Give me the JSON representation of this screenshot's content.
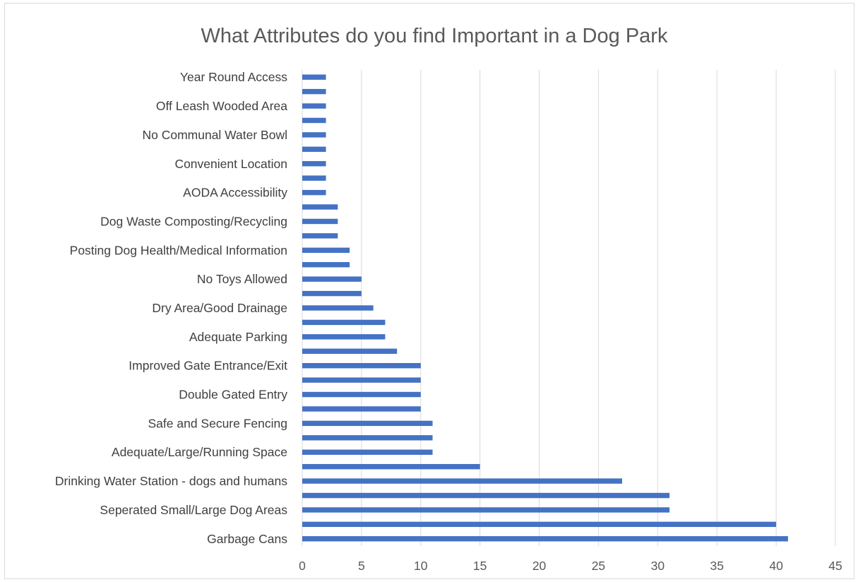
{
  "chart_data": {
    "type": "bar",
    "orientation": "horizontal",
    "title": "What Attributes do you find Important in a Dog Park",
    "xlabel": "",
    "ylabel": "",
    "xlim": [
      0,
      45
    ],
    "x_ticks": [
      0,
      5,
      10,
      15,
      20,
      25,
      30,
      35,
      40,
      45
    ],
    "grid": true,
    "legend": "none",
    "bar_color": "#4472c4",
    "categories": [
      {
        "label": "Garbage Cans",
        "value": 41
      },
      {
        "label": "",
        "value": 40
      },
      {
        "label": "Seperated Small/Large Dog Areas",
        "value": 31
      },
      {
        "label": "",
        "value": 31
      },
      {
        "label": "Drinking Water Station - dogs and humans",
        "value": 27
      },
      {
        "label": "",
        "value": 15
      },
      {
        "label": "Adequate/Large/Running Space",
        "value": 11
      },
      {
        "label": "",
        "value": 11
      },
      {
        "label": "Safe and Secure Fencing",
        "value": 11
      },
      {
        "label": "",
        "value": 10
      },
      {
        "label": "Double Gated Entry",
        "value": 10
      },
      {
        "label": "",
        "value": 10
      },
      {
        "label": "Improved Gate Entrance/Exit",
        "value": 10
      },
      {
        "label": "",
        "value": 8
      },
      {
        "label": "Adequate Parking",
        "value": 7
      },
      {
        "label": "",
        "value": 7
      },
      {
        "label": "Dry Area/Good Drainage",
        "value": 6
      },
      {
        "label": "",
        "value": 5
      },
      {
        "label": "No Toys Allowed",
        "value": 5
      },
      {
        "label": "",
        "value": 4
      },
      {
        "label": "Posting Dog Health/Medical Information",
        "value": 4
      },
      {
        "label": "",
        "value": 3
      },
      {
        "label": "Dog Waste Composting/Recycling",
        "value": 3
      },
      {
        "label": "",
        "value": 3
      },
      {
        "label": "AODA Accessibility",
        "value": 2
      },
      {
        "label": "",
        "value": 2
      },
      {
        "label": "Convenient Location",
        "value": 2
      },
      {
        "label": "",
        "value": 2
      },
      {
        "label": "No Communal Water Bowl",
        "value": 2
      },
      {
        "label": "",
        "value": 2
      },
      {
        "label": "Off Leash Wooded Area",
        "value": 2
      },
      {
        "label": "",
        "value": 2
      },
      {
        "label": "Year Round Access",
        "value": 2
      }
    ]
  }
}
